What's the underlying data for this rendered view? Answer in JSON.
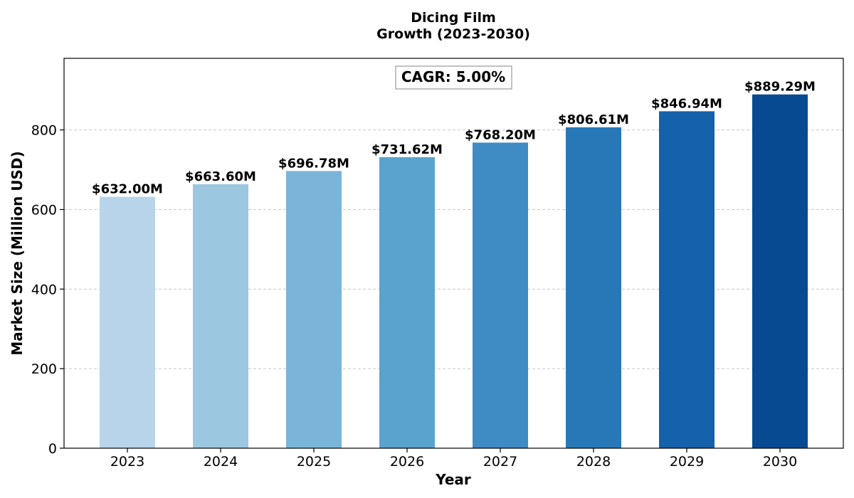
{
  "chart_data": {
    "type": "bar",
    "title_lines": [
      "Dicing Film",
      "Growth (2023-2030)"
    ],
    "xlabel": "Year",
    "ylabel": "Market Size (Million USD)",
    "categories": [
      "2023",
      "2024",
      "2025",
      "2026",
      "2027",
      "2028",
      "2029",
      "2030"
    ],
    "values": [
      632.0,
      663.6,
      696.78,
      731.62,
      768.2,
      806.61,
      846.94,
      889.29
    ],
    "data_labels": [
      "$632.00M",
      "$663.60M",
      "$696.78M",
      "$731.62M",
      "$768.20M",
      "$806.61M",
      "$846.94M",
      "$889.29M"
    ],
    "colors": [
      "#b8d4ea",
      "#9bc8e0",
      "#7ab5d9",
      "#5ba3cf",
      "#3f8cc5",
      "#2878b8",
      "#1561aa",
      "#084a92"
    ],
    "ylim": [
      0,
      980
    ],
    "yticks": [
      0,
      200,
      400,
      600,
      800
    ],
    "grid": "y-dashed",
    "annotation": "CAGR: 5.00%"
  }
}
